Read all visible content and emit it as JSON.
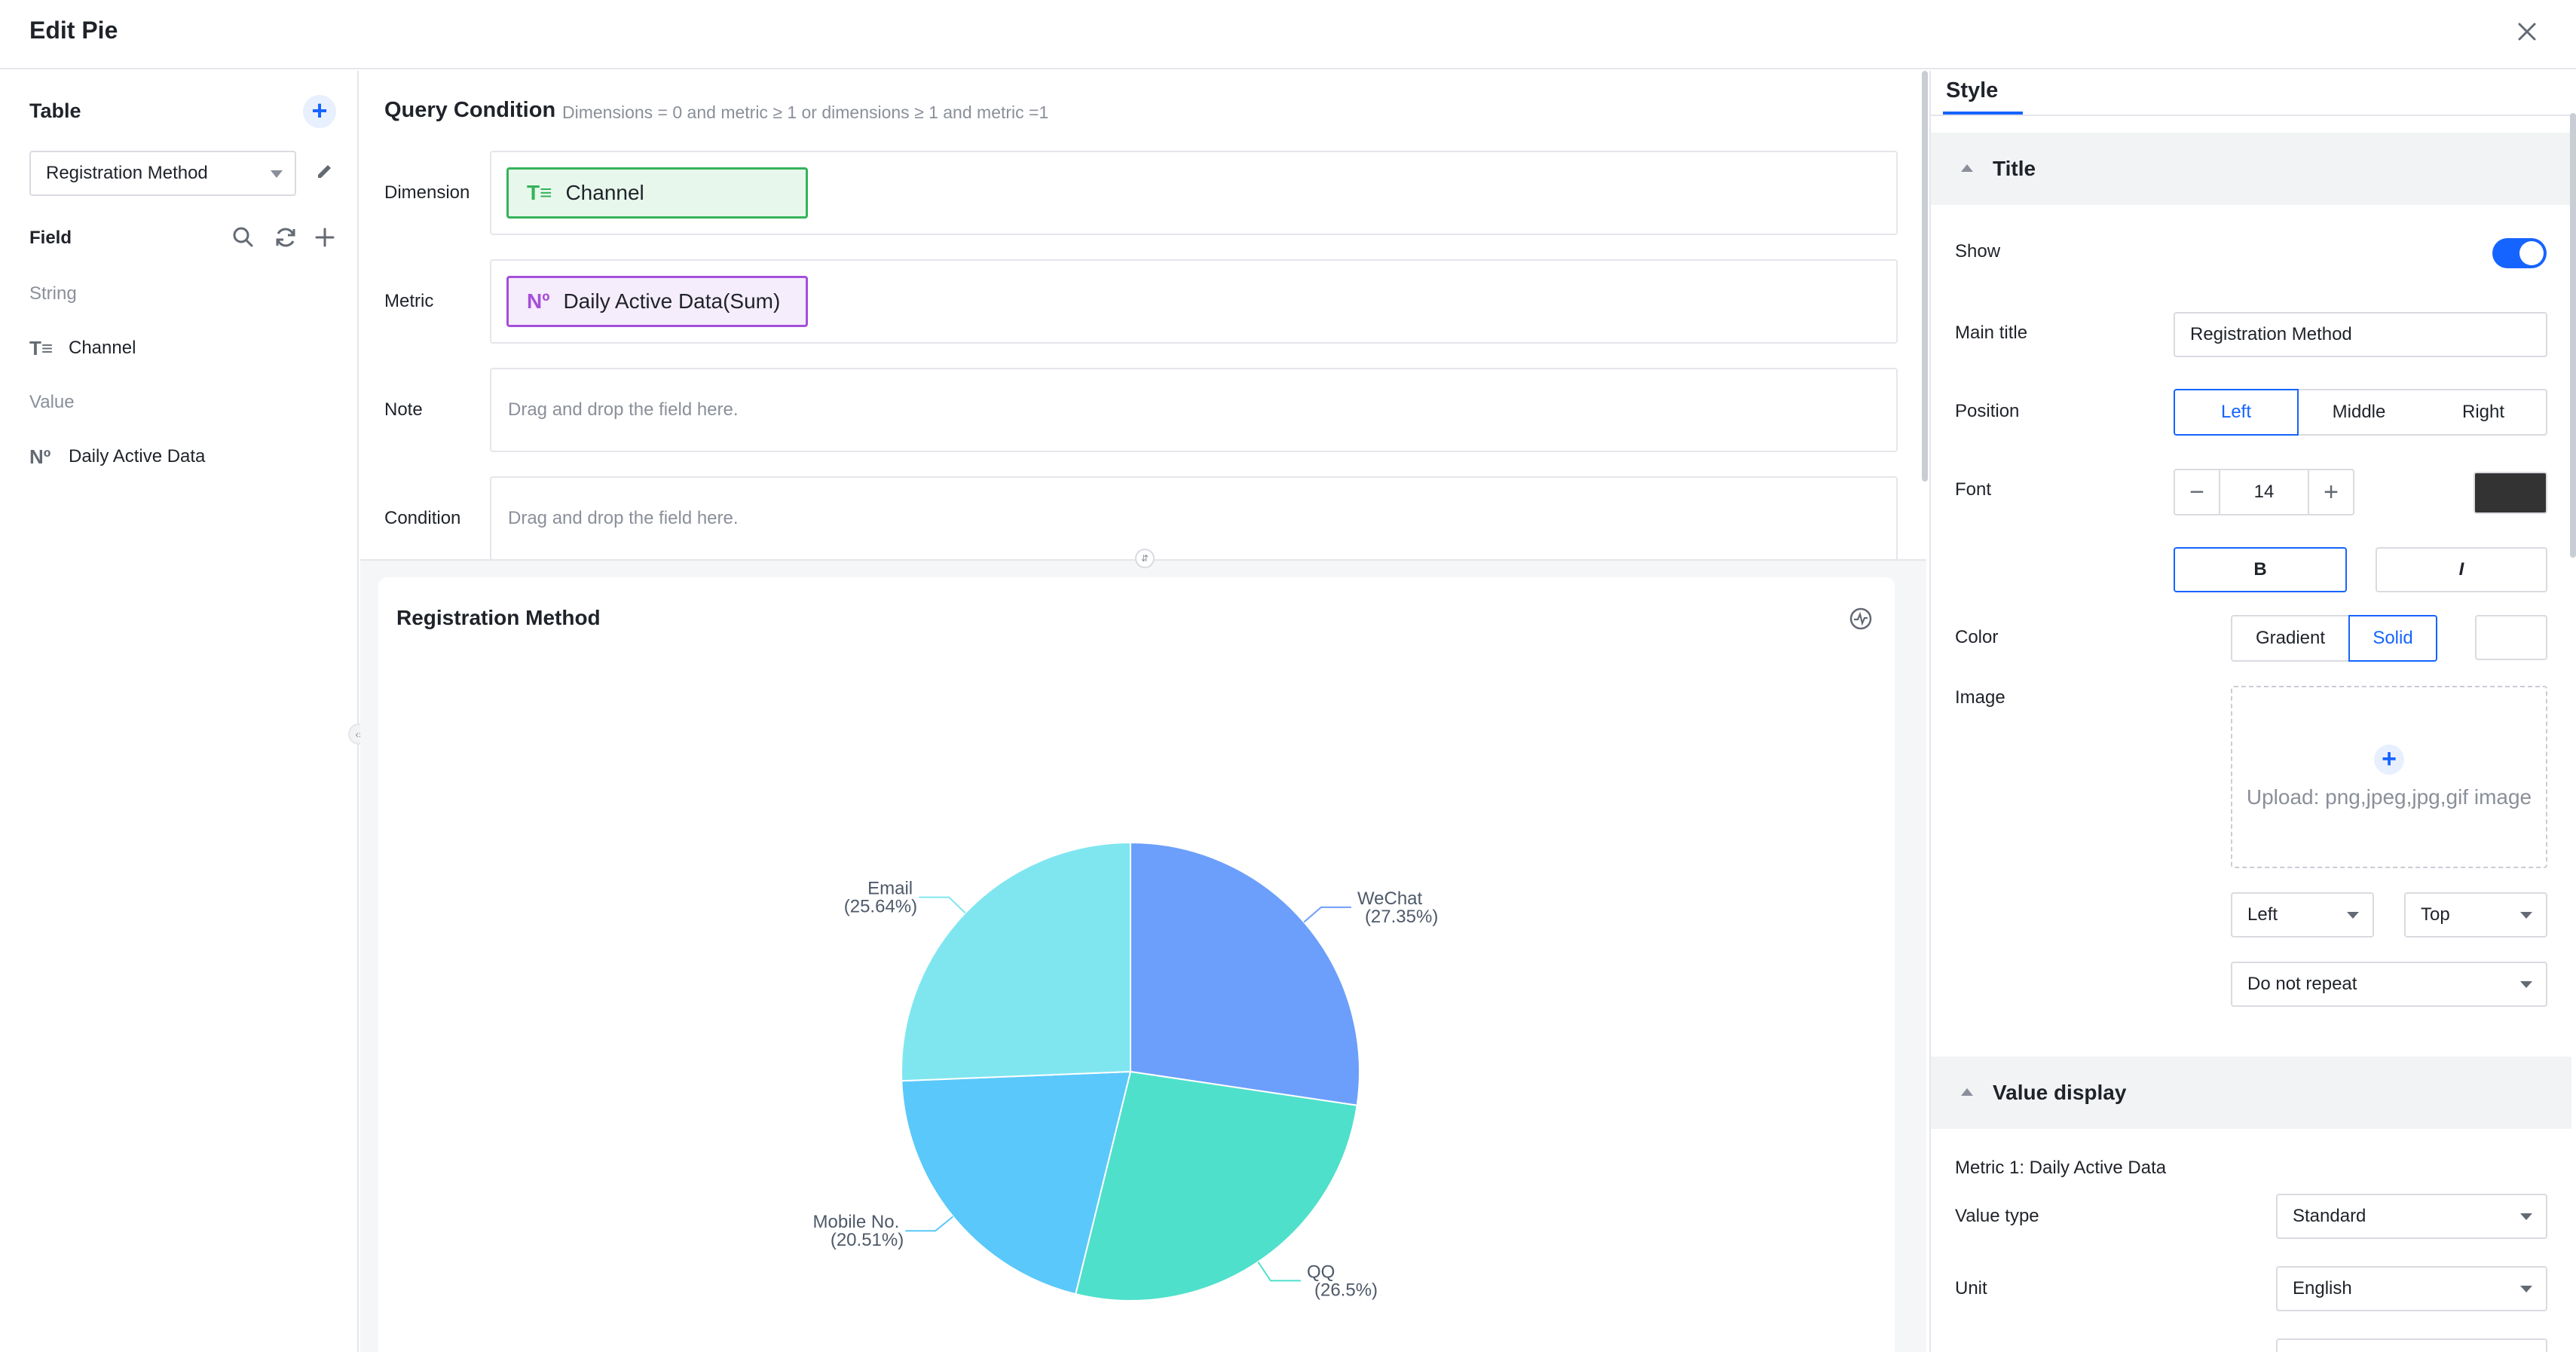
{
  "dialog": {
    "title": "Edit Pie"
  },
  "left": {
    "table_title": "Table",
    "table_select": "Registration Method",
    "field_title": "Field",
    "groups": [
      {
        "label": "String",
        "items": [
          {
            "glyph": "T≡",
            "label": "Channel"
          }
        ]
      },
      {
        "label": "Value",
        "items": [
          {
            "glyph": "Nº",
            "label": "Daily Active Data"
          }
        ]
      }
    ]
  },
  "query": {
    "title": "Query Condition",
    "hint": "Dimensions = 0 and metric ≥ 1 or dimensions ≥ 1 and metric =1",
    "dimension_label": "Dimension",
    "dimension_glyph": "T≡",
    "dimension_value": "Channel",
    "metric_label": "Metric",
    "metric_glyph": "Nº",
    "metric_value": "Daily Active Data(Sum)",
    "note_label": "Note",
    "note_placeholder": "Drag and drop the field here.",
    "condition_label": "Condition",
    "condition_placeholder": "Drag and drop the field here."
  },
  "chart_data": {
    "type": "pie",
    "title": "Registration Method",
    "categories": [
      "WeChat",
      "QQ",
      "Mobile No.",
      "Email"
    ],
    "values": [
      27.35,
      26.5,
      20.51,
      25.64
    ],
    "labels": [
      "(27.35%)",
      "(26.5%)",
      "(20.51%)",
      "(25.64%)"
    ],
    "colors": [
      "#6c9ffc",
      "#4ee0cb",
      "#5ac8fa",
      "#7fe6f0"
    ],
    "legend": "bottom"
  },
  "style": {
    "tab": "Style",
    "title_section": "Title",
    "show_label": "Show",
    "main_title_label": "Main title",
    "main_title_value": "Registration Method",
    "position_label": "Position",
    "position_options": [
      "Left",
      "Middle",
      "Right"
    ],
    "position_selected": "Left",
    "font_label": "Font",
    "font_size": "14",
    "font_color": "#333333",
    "bold_label": "B",
    "italic_label": "I",
    "color_label": "Color",
    "color_options": [
      "Gradient",
      "Solid"
    ],
    "color_selected": "Solid",
    "image_label": "Image",
    "upload_text": "Upload: png,jpeg,jpg,gif image",
    "image_h_align": "Left",
    "image_v_align": "Top",
    "image_repeat": "Do not repeat",
    "value_display_section": "Value display",
    "metric_line": "Metric 1: Daily Active Data",
    "value_type_label": "Value type",
    "value_type": "Standard",
    "unit_label": "Unit",
    "unit": "English"
  }
}
